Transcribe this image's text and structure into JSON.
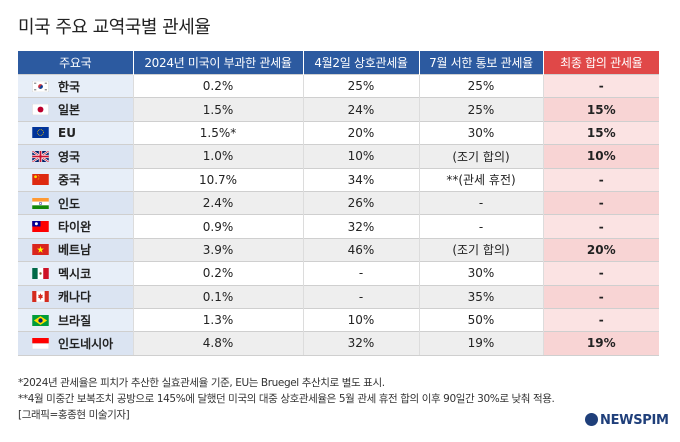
{
  "title": "미국 주요 교역국별 관세율",
  "chart_data": {
    "type": "table",
    "columns": [
      "주요국",
      "2024년 미국이 부과한 관세율",
      "4월2일 상호관세율",
      "7월 서한 통보 관세율",
      "최종 합의 관세율"
    ],
    "rows": [
      {
        "flag": "kr-flag-icon",
        "country": "한국",
        "y2024": "0.2%",
        "apr2": "25%",
        "jul": "25%",
        "final": "-"
      },
      {
        "flag": "jp-flag-icon",
        "country": "일본",
        "y2024": "1.5%",
        "apr2": "24%",
        "jul": "25%",
        "final": "15%"
      },
      {
        "flag": "eu-flag-icon",
        "country": "EU",
        "y2024": "1.5%*",
        "apr2": "20%",
        "jul": "30%",
        "final": "15%"
      },
      {
        "flag": "uk-flag-icon",
        "country": "영국",
        "y2024": "1.0%",
        "apr2": "10%",
        "jul": "(조기 합의)",
        "final": "10%"
      },
      {
        "flag": "cn-flag-icon",
        "country": "중국",
        "y2024": "10.7%",
        "apr2": "34%",
        "jul": "**(관세 휴전)",
        "final": "-"
      },
      {
        "flag": "in-flag-icon",
        "country": "인도",
        "y2024": "2.4%",
        "apr2": "26%",
        "jul": "-",
        "final": "-"
      },
      {
        "flag": "tw-flag-icon",
        "country": "타이완",
        "y2024": "0.9%",
        "apr2": "32%",
        "jul": "-",
        "final": "-"
      },
      {
        "flag": "vn-flag-icon",
        "country": "베트남",
        "y2024": "3.9%",
        "apr2": "46%",
        "jul": "(조기 합의)",
        "final": "20%"
      },
      {
        "flag": "mx-flag-icon",
        "country": "멕시코",
        "y2024": "0.2%",
        "apr2": "-",
        "jul": "30%",
        "final": "-"
      },
      {
        "flag": "ca-flag-icon",
        "country": "캐나다",
        "y2024": "0.1%",
        "apr2": "-",
        "jul": "35%",
        "final": "-"
      },
      {
        "flag": "br-flag-icon",
        "country": "브라질",
        "y2024": "1.3%",
        "apr2": "10%",
        "jul": "50%",
        "final": "-"
      },
      {
        "flag": "id-flag-icon",
        "country": "인도네시아",
        "y2024": "4.8%",
        "apr2": "32%",
        "jul": "19%",
        "final": "19%"
      }
    ]
  },
  "notes": [
    "*2024년 관세율은 피치가 추산한 실효관세율 기준, EU는 Bruegel 추산치로 별도 표시.",
    "**4월 미중간 보복조치 공방으로 145%에 달했던 미국의 대중 상호관세율은 5월 관세 휴전 합의 이후 90일간 30%로 낮춰 적용.",
    "[그래픽=홍종현 미술기자]"
  ],
  "logo": "NEWSPIM",
  "colors": {
    "header": "#2c5aa0",
    "final_header": "#e04848",
    "name_col": "#e7eef8",
    "final_col": "#fbe3e3"
  }
}
